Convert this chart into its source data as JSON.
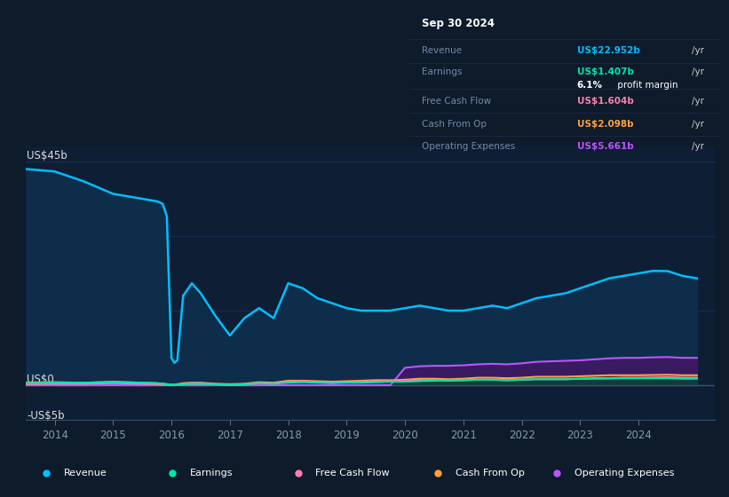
{
  "bg_color": "#0d1b2a",
  "plot_bg": "#0e1f35",
  "grid_color": "#1e3050",
  "y_label_45b": "US$45b",
  "y_label_0": "US$0",
  "y_label_neg5b": "-US$5b",
  "ylim": [
    -7,
    48
  ],
  "x_years": [
    2013.5,
    2014.0,
    2014.5,
    2015.0,
    2015.5,
    2015.75,
    2015.85,
    2015.92,
    2016.0,
    2016.05,
    2016.1,
    2016.2,
    2016.35,
    2016.5,
    2016.75,
    2017.0,
    2017.25,
    2017.5,
    2017.75,
    2018.0,
    2018.25,
    2018.5,
    2018.75,
    2019.0,
    2019.25,
    2019.5,
    2019.75,
    2020.0,
    2020.25,
    2020.5,
    2020.75,
    2021.0,
    2021.25,
    2021.5,
    2021.75,
    2022.0,
    2022.25,
    2022.5,
    2022.75,
    2023.0,
    2023.25,
    2023.5,
    2023.75,
    2024.0,
    2024.25,
    2024.5,
    2024.75,
    2025.0
  ],
  "revenue": [
    43.5,
    43.0,
    41.0,
    38.5,
    37.5,
    37.0,
    36.5,
    34.0,
    5.5,
    4.5,
    5.0,
    18.0,
    20.5,
    18.5,
    14.0,
    10.0,
    13.5,
    15.5,
    13.5,
    20.5,
    19.5,
    17.5,
    16.5,
    15.5,
    15.0,
    15.0,
    15.0,
    15.5,
    16.0,
    15.5,
    15.0,
    15.0,
    15.5,
    16.0,
    15.5,
    16.5,
    17.5,
    18.0,
    18.5,
    19.5,
    20.5,
    21.5,
    22.0,
    22.5,
    23.0,
    22.952,
    22.0,
    21.5
  ],
  "earnings": [
    0.4,
    0.5,
    0.5,
    0.6,
    0.5,
    0.4,
    0.3,
    0.2,
    0.1,
    0.0,
    0.1,
    0.2,
    0.3,
    0.3,
    0.2,
    0.1,
    0.2,
    0.4,
    0.3,
    0.5,
    0.6,
    0.5,
    0.4,
    0.5,
    0.5,
    0.6,
    0.7,
    0.7,
    0.8,
    0.9,
    1.0,
    1.0,
    1.1,
    1.1,
    1.0,
    1.1,
    1.2,
    1.2,
    1.2,
    1.3,
    1.3,
    1.35,
    1.4,
    1.4,
    1.4,
    1.407,
    1.3,
    1.3
  ],
  "free_cash_flow": [
    0.2,
    0.3,
    0.3,
    0.4,
    0.3,
    0.2,
    0.1,
    0.1,
    0.0,
    0.0,
    0.1,
    0.2,
    0.3,
    0.3,
    0.2,
    0.0,
    0.1,
    0.4,
    0.3,
    0.7,
    0.8,
    0.6,
    0.5,
    0.6,
    0.7,
    0.8,
    0.8,
    0.9,
    1.0,
    1.0,
    0.9,
    1.0,
    1.1,
    1.1,
    1.0,
    1.1,
    1.2,
    1.2,
    1.2,
    1.3,
    1.4,
    1.4,
    1.5,
    1.5,
    1.55,
    1.604,
    1.5,
    1.5
  ],
  "cash_from_op": [
    0.5,
    0.6,
    0.5,
    0.7,
    0.5,
    0.4,
    0.3,
    0.2,
    0.1,
    0.1,
    0.2,
    0.4,
    0.5,
    0.5,
    0.3,
    0.2,
    0.3,
    0.6,
    0.5,
    0.9,
    0.9,
    0.8,
    0.7,
    0.8,
    0.9,
    1.0,
    1.0,
    1.1,
    1.3,
    1.3,
    1.2,
    1.3,
    1.5,
    1.5,
    1.4,
    1.5,
    1.7,
    1.7,
    1.7,
    1.8,
    1.9,
    2.0,
    2.0,
    2.0,
    2.05,
    2.098,
    2.0,
    2.0
  ],
  "op_expenses": [
    0.0,
    0.0,
    0.0,
    0.0,
    0.0,
    0.0,
    0.0,
    0.0,
    0.0,
    0.0,
    0.0,
    0.0,
    0.0,
    0.0,
    0.0,
    0.0,
    0.0,
    0.0,
    0.0,
    0.0,
    0.0,
    0.0,
    0.0,
    0.0,
    0.0,
    0.0,
    0.0,
    3.5,
    3.8,
    3.9,
    3.9,
    4.0,
    4.2,
    4.3,
    4.2,
    4.4,
    4.7,
    4.8,
    4.9,
    5.0,
    5.2,
    5.4,
    5.5,
    5.5,
    5.6,
    5.661,
    5.5,
    5.5
  ],
  "revenue_color": "#00bfff",
  "revenue_fill": "#0e2d4a",
  "earnings_color": "#00e5b0",
  "earnings_fill": "#004440",
  "free_cash_flow_color": "#ff7eb0",
  "fcf_fill": "#502035",
  "cash_from_op_color": "#ffa040",
  "cop_fill": "#503010",
  "op_expenses_color": "#bb55ff",
  "op_expenses_fill": "#3a1a60",
  "xticks": [
    2014,
    2015,
    2016,
    2017,
    2018,
    2019,
    2020,
    2021,
    2022,
    2023,
    2024
  ],
  "info_box": {
    "date": "Sep 30 2024",
    "revenue_val": "US$22.952b",
    "revenue_color": "#00bfff",
    "earnings_val": "US$1.407b",
    "earnings_color": "#00e5b0",
    "profit_margin": "6.1%",
    "fcf_val": "US$1.604b",
    "fcf_color": "#ff7eb0",
    "cash_op_val": "US$2.098b",
    "cash_op_color": "#ffa040",
    "op_exp_val": "US$5.661b",
    "op_exp_color": "#bb55ff"
  },
  "legend_items": [
    {
      "label": "Revenue",
      "color": "#00bfff"
    },
    {
      "label": "Earnings",
      "color": "#00e5b0"
    },
    {
      "label": "Free Cash Flow",
      "color": "#ff7eb0"
    },
    {
      "label": "Cash From Op",
      "color": "#ffa040"
    },
    {
      "label": "Operating Expenses",
      "color": "#bb55ff"
    }
  ]
}
